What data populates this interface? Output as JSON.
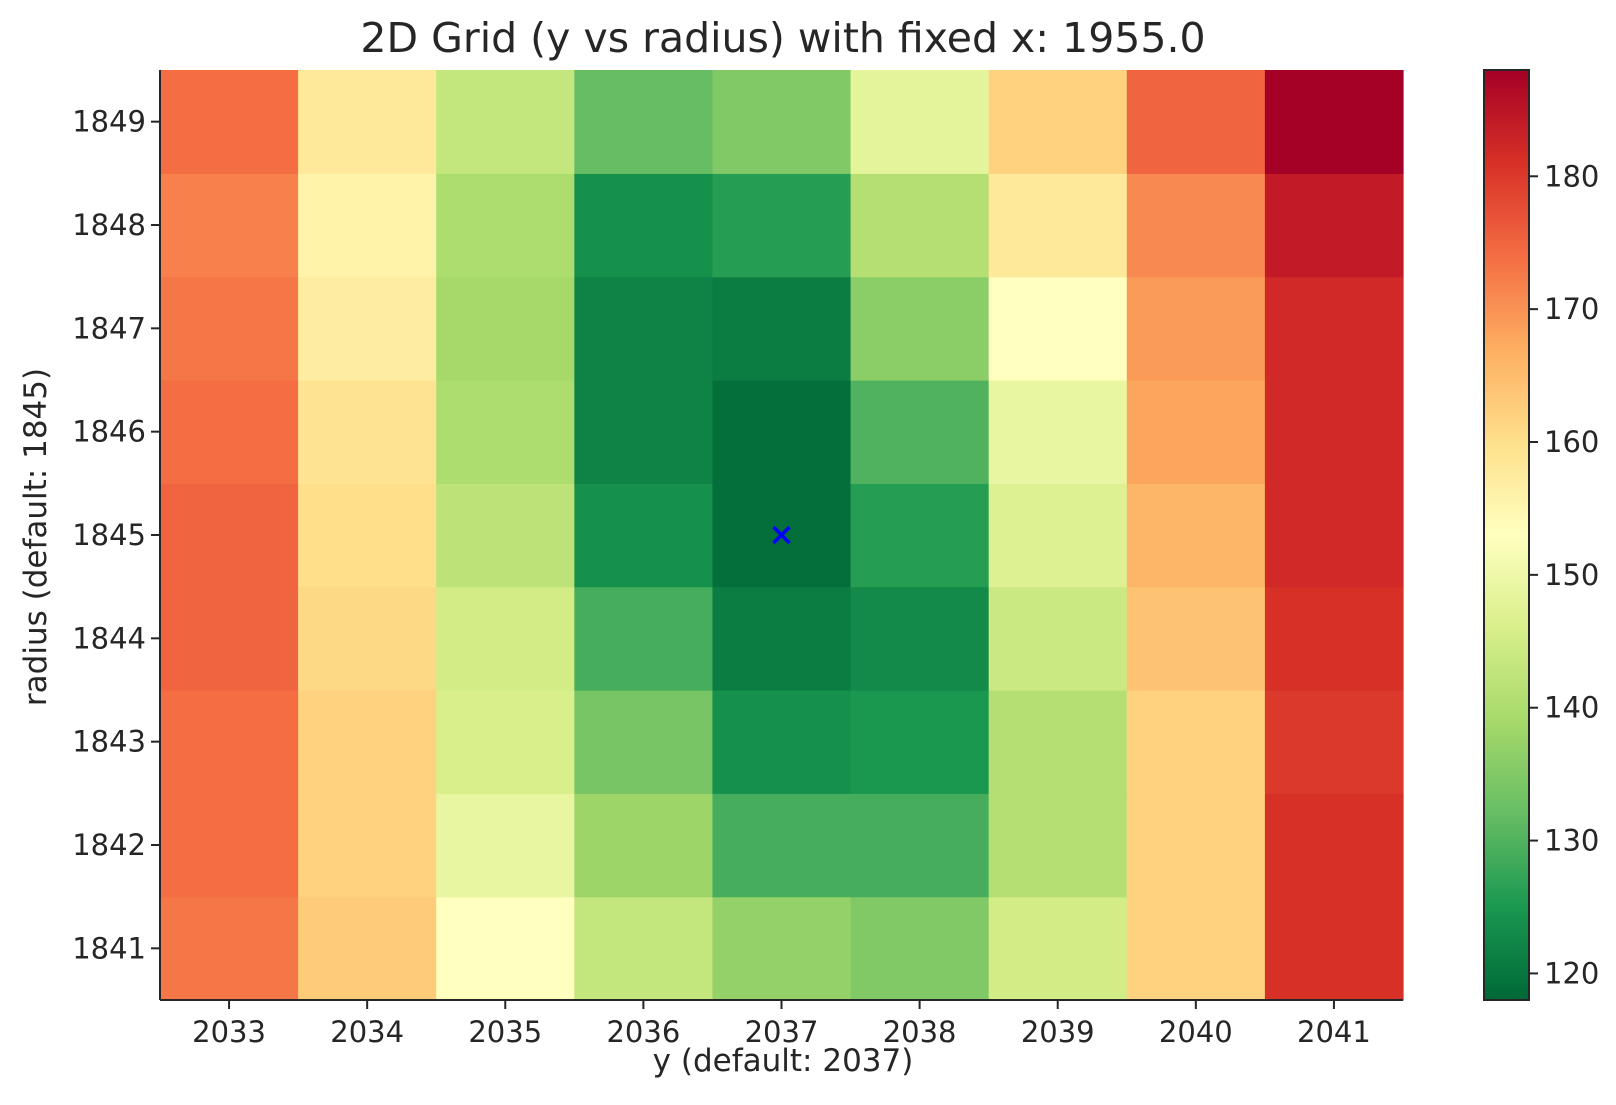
{
  "chart_data": {
    "type": "heatmap",
    "title": "2D Grid (y vs radius) with fixed x: 1955.0",
    "xlabel": "y (default: 2037)",
    "ylabel": "radius (default: 1845)",
    "x": [
      2033,
      2034,
      2035,
      2036,
      2037,
      2038,
      2039,
      2040,
      2041
    ],
    "y": [
      1841,
      1842,
      1843,
      1844,
      1845,
      1846,
      1847,
      1848,
      1849
    ],
    "z_rows_by_radius_ascending": [
      [
        173,
        163,
        153,
        143,
        137,
        135,
        145,
        162,
        181
      ],
      [
        174,
        162,
        149,
        138,
        129,
        129,
        141,
        162,
        181
      ],
      [
        174,
        162,
        146,
        134,
        124,
        125,
        141,
        162,
        180
      ],
      [
        175,
        161,
        145,
        129,
        121,
        123,
        144,
        164,
        181
      ],
      [
        175,
        160,
        142,
        124,
        119,
        126,
        147,
        166,
        182
      ],
      [
        174,
        159,
        140,
        122,
        119,
        130,
        149,
        168,
        182
      ],
      [
        173,
        157,
        139,
        122,
        121,
        136,
        153,
        169,
        182
      ],
      [
        172,
        156,
        140,
        124,
        126,
        141,
        158,
        171,
        184
      ],
      [
        174,
        158,
        143,
        132,
        135,
        148,
        162,
        175,
        188
      ]
    ],
    "colormap": "RdYlGn_r",
    "colorbar": {
      "min": 118,
      "max": 188,
      "ticks": [
        120,
        130,
        140,
        150,
        160,
        170,
        180
      ]
    },
    "marker": {
      "x": 2037,
      "y": 1845,
      "symbol": "x",
      "color": "#0000ff"
    },
    "grid": false
  }
}
